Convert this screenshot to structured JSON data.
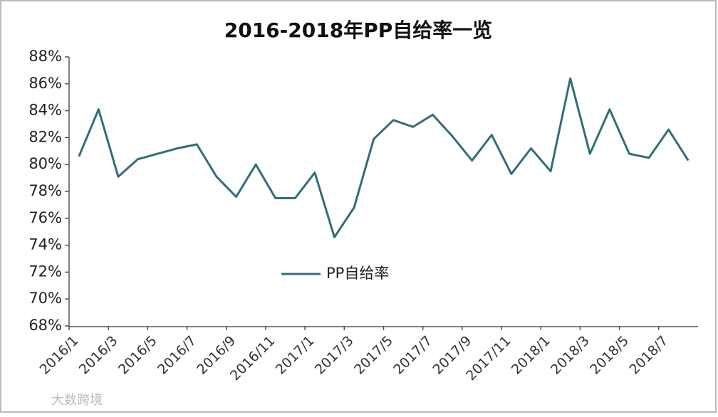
{
  "chart_data": {
    "type": "line",
    "title": "2016-2018年PP自给率一览",
    "categories": [
      "2016/1",
      null,
      "2016/3",
      null,
      "2016/5",
      null,
      "2016/7",
      null,
      "2016/9",
      null,
      "2016/11",
      null,
      "2017/1",
      null,
      "2017/3",
      null,
      "2017/5",
      null,
      "2017/7",
      null,
      "2017/9",
      null,
      "2017/11",
      null,
      "2018/1",
      null,
      "2018/3",
      null,
      "2018/5",
      null,
      "2018/7",
      null
    ],
    "series": [
      {
        "name": "PP自给率",
        "color": "#2f6f7b",
        "values": [
          80.6,
          84.1,
          79.1,
          80.4,
          80.8,
          81.2,
          81.5,
          79.1,
          77.6,
          80.0,
          77.5,
          77.5,
          79.4,
          74.6,
          76.8,
          81.9,
          83.3,
          82.8,
          83.7,
          82.1,
          80.3,
          82.2,
          79.3,
          81.2,
          79.5,
          86.4,
          80.8,
          84.1,
          80.8,
          80.5,
          82.6,
          80.3
        ]
      }
    ],
    "ylim": [
      68,
      88
    ],
    "yticks": [
      {
        "value": 68,
        "label": "68%"
      },
      {
        "value": 70,
        "label": "70%"
      },
      {
        "value": 72,
        "label": "72%"
      },
      {
        "value": 74,
        "label": "74%"
      },
      {
        "value": 76,
        "label": "76%"
      },
      {
        "value": 78,
        "label": "78%"
      },
      {
        "value": 80,
        "label": "80%"
      },
      {
        "value": 82,
        "label": "82%"
      },
      {
        "value": 84,
        "label": "84%"
      },
      {
        "value": 86,
        "label": "86%"
      },
      {
        "value": 88,
        "label": "88%"
      }
    ],
    "grid": false,
    "legend": "center",
    "watermark": "大数跨境"
  }
}
